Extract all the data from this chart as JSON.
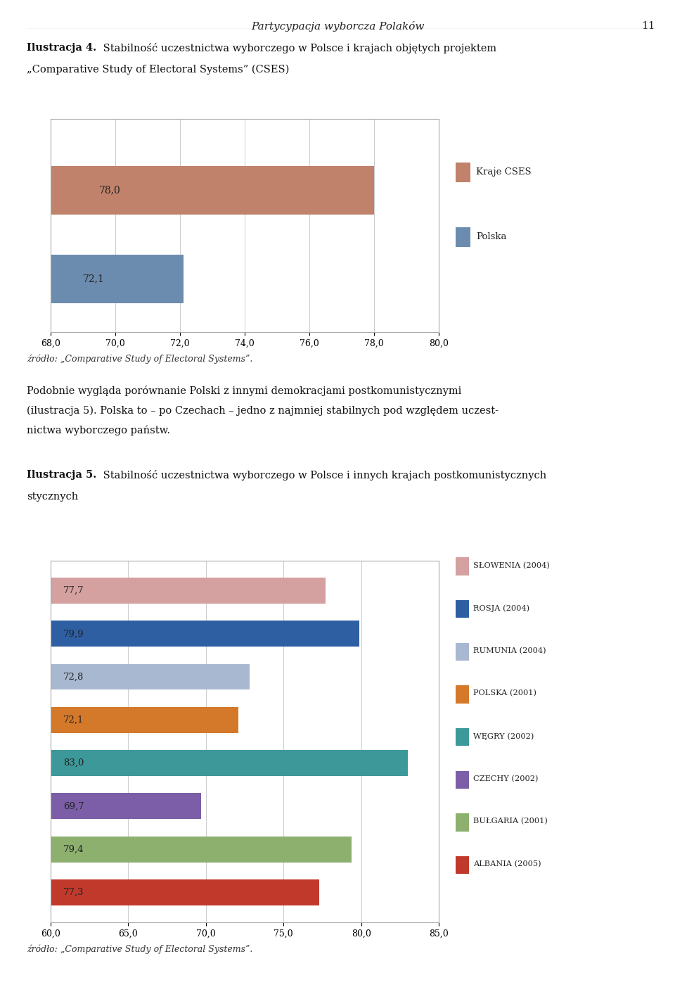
{
  "page_header": "Partycypacja wyborcza Polaków",
  "page_number": "11",
  "illus4_title_bold": "Ilustracja 4.",
  "illus4_title_rest": " Stabilność uczestnictwa wyborczego w Polsce i krajach objętych projektem „Comparative Study of Electoral Systems” (CSES)",
  "chart1": {
    "categories": [
      "Kraje CSES",
      "Polska"
    ],
    "values": [
      78.0,
      72.1
    ],
    "colors": [
      "#C0826A",
      "#6B8CAE"
    ],
    "xlim_min": 68.0,
    "xlim_max": 80.0,
    "xticks": [
      68.0,
      70.0,
      72.0,
      74.0,
      76.0,
      78.0,
      80.0
    ],
    "legend_labels": [
      "Kraje CSES",
      "Polska"
    ],
    "source": "źródło: „Comparative Study of Electoral Systems”."
  },
  "paragraph_lines": [
    "Podobnie wygląda porównanie Polski z innymi demokracjami postkomunistycznymi",
    "(ilustracja 5). Polska to – po Czechach – jedno z najmniej stabilnych pod względem uczest-",
    "nictwa wyborczego państw."
  ],
  "illus5_title_bold": "Ilustracja 5.",
  "illus5_title_rest": " Stabilność uczestnictwa wyborczego w Polsce i innych krajach postkomunistycznych",
  "chart2": {
    "categories": [
      "SŁOWENIA (2004)",
      "ROSJA (2004)",
      "RUMUNIA (2004)",
      "POLSKA (2001)",
      "WĘGRY (2002)",
      "CZECHY (2002)",
      "BUŁGARIA (2001)",
      "ALBANIA (2005)"
    ],
    "values": [
      77.7,
      79.9,
      72.8,
      72.1,
      83.0,
      69.7,
      79.4,
      77.3
    ],
    "colors": [
      "#D4A0A0",
      "#2E5FA3",
      "#A8B8D0",
      "#D4782A",
      "#3D9999",
      "#7B5EA7",
      "#8DB06E",
      "#C0392B"
    ],
    "xlim_min": 60.0,
    "xlim_max": 85.0,
    "xticks": [
      60.0,
      65.0,
      70.0,
      75.0,
      80.0,
      85.0
    ],
    "source": "źródło: „Comparative Study of Electoral Systems”."
  }
}
